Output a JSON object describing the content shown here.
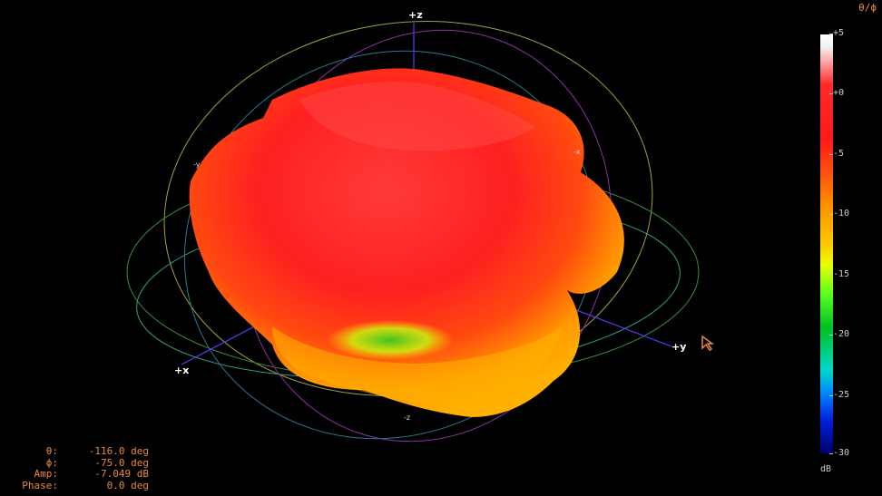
{
  "axes": {
    "pz": "+z",
    "nz": "-z",
    "px": "+x",
    "nx": "-x",
    "py": "+y",
    "ny": "-y"
  },
  "corner_label": "θ/ϕ ",
  "colorbar": {
    "ticks": [
      "+5",
      "+0",
      "-5",
      "-10",
      "-15",
      "-20",
      "-25",
      "-30"
    ],
    "units": "dB"
  },
  "readout": [
    {
      "key": "θ:",
      "value": "-116.0 deg"
    },
    {
      "key": "ϕ:",
      "value": "-75.0 deg"
    },
    {
      "key": "Amp:",
      "value": "-7.049 dB"
    },
    {
      "key": "Phase:",
      "value": "0.0 deg"
    }
  ],
  "icons": {
    "cursor": "pointer-cursor-icon"
  }
}
